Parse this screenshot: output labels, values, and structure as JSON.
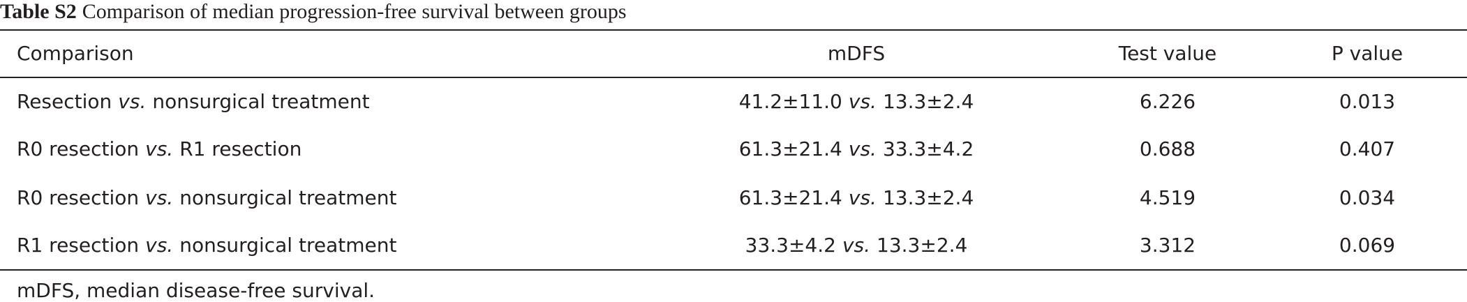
{
  "title": {
    "label": "Table S2",
    "text": "Comparison of median progression-free survival between groups"
  },
  "table": {
    "columns": [
      "Comparison",
      "mDFS",
      "Test value",
      "P value"
    ],
    "rows": [
      [
        [
          "Resection",
          "vs.",
          "nonsurgical treatment"
        ],
        [
          "41.2±11.0",
          "vs.",
          "13.3±2.4"
        ],
        "6.226",
        "0.013"
      ],
      [
        [
          "R0 resection",
          "vs.",
          "R1 resection"
        ],
        [
          "61.3±21.4",
          "vs.",
          "33.3±4.2"
        ],
        "0.688",
        "0.407"
      ],
      [
        [
          "R0 resection",
          "vs.",
          "nonsurgical treatment"
        ],
        [
          "61.3±21.4",
          "vs.",
          "13.3±2.4"
        ],
        "4.519",
        "0.034"
      ],
      [
        [
          "R1 resection",
          "vs.",
          "nonsurgical treatment"
        ],
        [
          "33.3±4.2",
          "vs.",
          "13.3±2.4"
        ],
        "3.312",
        "0.069"
      ]
    ]
  },
  "footnote": "mDFS, median disease-free survival."
}
